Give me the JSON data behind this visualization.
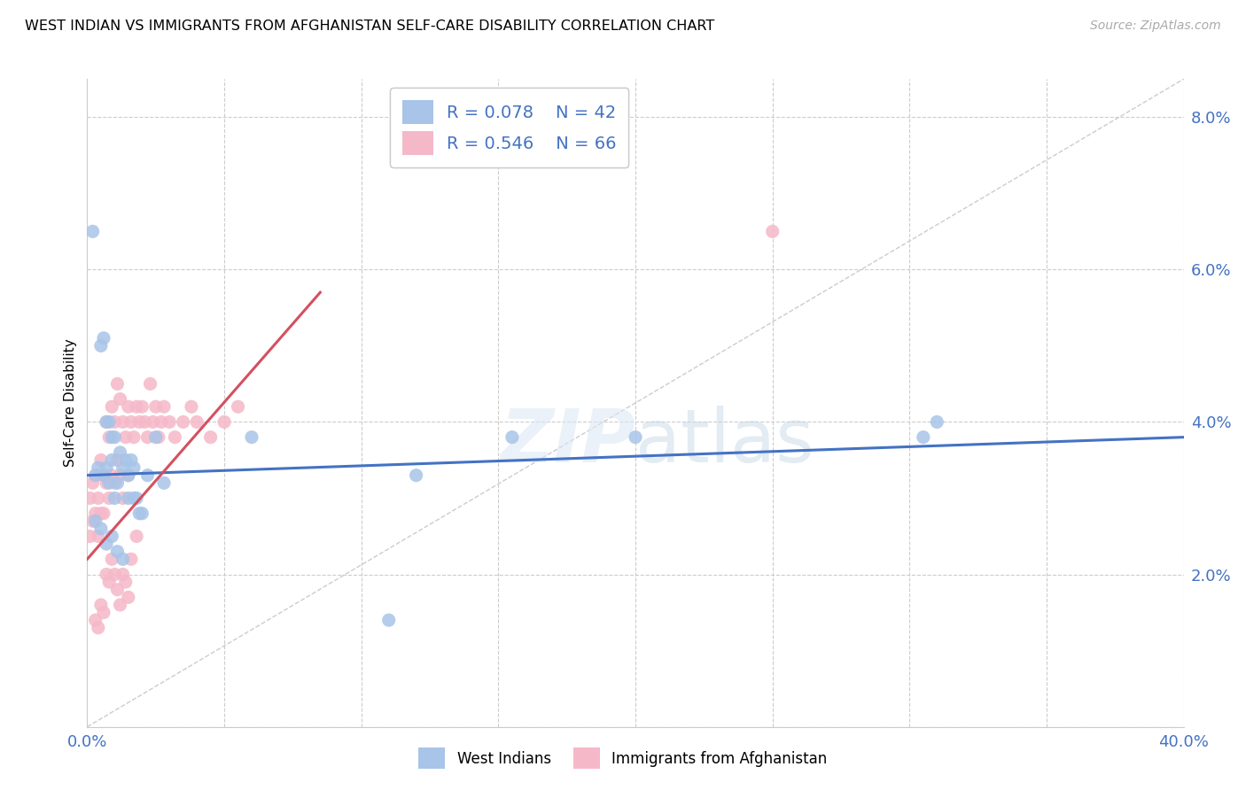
{
  "title": "WEST INDIAN VS IMMIGRANTS FROM AFGHANISTAN SELF-CARE DISABILITY CORRELATION CHART",
  "source": "Source: ZipAtlas.com",
  "ylabel": "Self-Care Disability",
  "xlim": [
    0.0,
    0.4
  ],
  "ylim": [
    0.0,
    0.085
  ],
  "blue_R": 0.078,
  "blue_N": 42,
  "pink_R": 0.546,
  "pink_N": 66,
  "blue_color": "#a8c4e8",
  "pink_color": "#f5b8c8",
  "blue_line_color": "#4472c4",
  "pink_line_color": "#d45060",
  "tick_color": "#4472c4",
  "grid_color": "#cccccc",
  "blue_line": {
    "x0": 0.0,
    "x1": 0.4,
    "y0": 0.033,
    "y1": 0.038
  },
  "pink_line": {
    "x0": 0.0,
    "x1": 0.085,
    "y0": 0.022,
    "y1": 0.057
  },
  "diag_line": {
    "x0": 0.0,
    "x1": 0.4,
    "y0": 0.0,
    "y1": 0.085
  },
  "blue_x": [
    0.002,
    0.003,
    0.004,
    0.005,
    0.006,
    0.006,
    0.007,
    0.007,
    0.008,
    0.008,
    0.009,
    0.009,
    0.01,
    0.01,
    0.011,
    0.012,
    0.013,
    0.014,
    0.015,
    0.016,
    0.017,
    0.018,
    0.019,
    0.02,
    0.022,
    0.025,
    0.028,
    0.06,
    0.11,
    0.12,
    0.155,
    0.2,
    0.305,
    0.31,
    0.003,
    0.005,
    0.007,
    0.009,
    0.011,
    0.013,
    0.015,
    0.017
  ],
  "blue_y": [
    0.065,
    0.033,
    0.034,
    0.05,
    0.051,
    0.033,
    0.04,
    0.034,
    0.032,
    0.04,
    0.038,
    0.035,
    0.03,
    0.038,
    0.032,
    0.036,
    0.034,
    0.035,
    0.033,
    0.035,
    0.034,
    0.03,
    0.028,
    0.028,
    0.033,
    0.038,
    0.032,
    0.038,
    0.014,
    0.033,
    0.038,
    0.038,
    0.038,
    0.04,
    0.027,
    0.026,
    0.024,
    0.025,
    0.023,
    0.022,
    0.03,
    0.03
  ],
  "pink_x": [
    0.001,
    0.001,
    0.002,
    0.002,
    0.003,
    0.003,
    0.004,
    0.004,
    0.005,
    0.005,
    0.006,
    0.006,
    0.007,
    0.007,
    0.008,
    0.008,
    0.009,
    0.009,
    0.01,
    0.01,
    0.011,
    0.011,
    0.012,
    0.012,
    0.013,
    0.013,
    0.014,
    0.015,
    0.015,
    0.016,
    0.017,
    0.018,
    0.019,
    0.02,
    0.021,
    0.022,
    0.023,
    0.024,
    0.025,
    0.026,
    0.027,
    0.028,
    0.03,
    0.032,
    0.035,
    0.038,
    0.04,
    0.045,
    0.05,
    0.055,
    0.003,
    0.004,
    0.005,
    0.006,
    0.007,
    0.008,
    0.009,
    0.01,
    0.011,
    0.012,
    0.013,
    0.014,
    0.015,
    0.016,
    0.018,
    0.25
  ],
  "pink_y": [
    0.03,
    0.025,
    0.032,
    0.027,
    0.033,
    0.028,
    0.03,
    0.025,
    0.035,
    0.028,
    0.033,
    0.028,
    0.04,
    0.032,
    0.038,
    0.03,
    0.042,
    0.033,
    0.04,
    0.032,
    0.045,
    0.035,
    0.043,
    0.033,
    0.04,
    0.03,
    0.038,
    0.042,
    0.033,
    0.04,
    0.038,
    0.042,
    0.04,
    0.042,
    0.04,
    0.038,
    0.045,
    0.04,
    0.042,
    0.038,
    0.04,
    0.042,
    0.04,
    0.038,
    0.04,
    0.042,
    0.04,
    0.038,
    0.04,
    0.042,
    0.014,
    0.013,
    0.016,
    0.015,
    0.02,
    0.019,
    0.022,
    0.02,
    0.018,
    0.016,
    0.02,
    0.019,
    0.017,
    0.022,
    0.025,
    0.065
  ]
}
